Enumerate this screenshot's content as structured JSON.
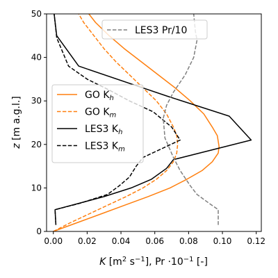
{
  "chart_data": {
    "type": "line",
    "xlabel": "K [m² s⁻¹],   Pr ·10⁻¹ [-]",
    "ylabel": "z [m a.g.l.]",
    "xlim": [
      -0.004,
      0.123
    ],
    "ylim": [
      0,
      50
    ],
    "xticks": [
      0.0,
      0.02,
      0.04,
      0.06,
      0.08,
      0.1,
      0.12
    ],
    "xtick_labels": [
      "0.00",
      "0.02",
      "0.04",
      "0.06",
      "0.08",
      "0.10",
      "0.12"
    ],
    "yticks": [
      0,
      10,
      20,
      30,
      40,
      50
    ],
    "ytick_labels": [
      "0",
      "10",
      "20",
      "30",
      "40",
      "50"
    ],
    "grid": false,
    "legends": [
      {
        "placement": "middle-left",
        "entries": [
          {
            "series": 0,
            "label": "GO K",
            "sub": "h"
          },
          {
            "series": 1,
            "label": "GO K",
            "sub": "m"
          },
          {
            "series": 2,
            "label": "LES3 K",
            "sub": "h"
          },
          {
            "series": 3,
            "label": "LES3 K",
            "sub": "m"
          }
        ]
      },
      {
        "placement": "upper-right",
        "entries": [
          {
            "series": 4,
            "label": "LES3 Pr/10",
            "sub": ""
          }
        ]
      }
    ],
    "series": [
      {
        "name": "GO Kh",
        "color": "#ff7f0e",
        "dash": "solid",
        "points": [
          [
            0.0,
            0
          ],
          [
            0.014,
            2
          ],
          [
            0.028,
            4
          ],
          [
            0.042,
            6
          ],
          [
            0.056,
            8
          ],
          [
            0.069,
            10
          ],
          [
            0.079,
            12
          ],
          [
            0.088,
            14
          ],
          [
            0.094,
            16
          ],
          [
            0.0975,
            18
          ],
          [
            0.098,
            19.5
          ],
          [
            0.097,
            22
          ],
          [
            0.094,
            24
          ],
          [
            0.089,
            27
          ],
          [
            0.081,
            30
          ],
          [
            0.072,
            33
          ],
          [
            0.062,
            36
          ],
          [
            0.052,
            39
          ],
          [
            0.042,
            42
          ],
          [
            0.033,
            45
          ],
          [
            0.025,
            48
          ],
          [
            0.021,
            50
          ]
        ]
      },
      {
        "name": "GO Km",
        "color": "#ff7f0e",
        "dash": "dashed",
        "points": [
          [
            0.0,
            0
          ],
          [
            0.01,
            2
          ],
          [
            0.021,
            4
          ],
          [
            0.032,
            6
          ],
          [
            0.043,
            8
          ],
          [
            0.053,
            10
          ],
          [
            0.061,
            12
          ],
          [
            0.067,
            14
          ],
          [
            0.071,
            16
          ],
          [
            0.073,
            18
          ],
          [
            0.0735,
            20
          ],
          [
            0.073,
            22
          ],
          [
            0.071,
            24
          ],
          [
            0.067,
            27
          ],
          [
            0.061,
            30
          ],
          [
            0.053,
            33
          ],
          [
            0.045,
            36
          ],
          [
            0.037,
            39
          ],
          [
            0.03,
            42
          ],
          [
            0.024,
            45
          ],
          [
            0.018,
            48
          ],
          [
            0.015,
            50
          ]
        ]
      },
      {
        "name": "LES3 Kh",
        "color": "#000000",
        "dash": "solid",
        "points": [
          [
            0.0015,
            1.5
          ],
          [
            0.001,
            5
          ],
          [
            0.03,
            8
          ],
          [
            0.046,
            10
          ],
          [
            0.058,
            12
          ],
          [
            0.067,
            14.5
          ],
          [
            0.071,
            16.5
          ],
          [
            0.117,
            21
          ],
          [
            0.104,
            26.5
          ],
          [
            0.068,
            31
          ],
          [
            0.015,
            38
          ],
          [
            0.002,
            45
          ],
          [
            0.0005,
            50
          ]
        ]
      },
      {
        "name": "LES3 Km",
        "color": "#000000",
        "dash": "dashed",
        "points": [
          [
            0.0015,
            1.5
          ],
          [
            0.001,
            5
          ],
          [
            0.016,
            6.5
          ],
          [
            0.032,
            8.5
          ],
          [
            0.039,
            10.5
          ],
          [
            0.045,
            12.5
          ],
          [
            0.049,
            15
          ],
          [
            0.053,
            17
          ],
          [
            0.075,
            21
          ],
          [
            0.07,
            24
          ],
          [
            0.059,
            27.5
          ],
          [
            0.045,
            30
          ],
          [
            0.033,
            32.5
          ],
          [
            0.02,
            35
          ],
          [
            0.009,
            38
          ],
          [
            0.002,
            44.5
          ],
          [
            0.0005,
            50
          ]
        ]
      },
      {
        "name": "LES3 Pr/10",
        "color": "#7f7f7f",
        "dash": "dashed",
        "points": [
          [
            0.0975,
            1.5
          ],
          [
            0.0975,
            5
          ],
          [
            0.092,
            6.5
          ],
          [
            0.085,
            8.5
          ],
          [
            0.081,
            10.5
          ],
          [
            0.075,
            14
          ],
          [
            0.071,
            17
          ],
          [
            0.066,
            21.5
          ],
          [
            0.065,
            26
          ],
          [
            0.067,
            29
          ],
          [
            0.071,
            32
          ],
          [
            0.078,
            36
          ],
          [
            0.083,
            40
          ],
          [
            0.085,
            44
          ],
          [
            0.084,
            46
          ],
          [
            0.083,
            50
          ]
        ]
      }
    ]
  }
}
